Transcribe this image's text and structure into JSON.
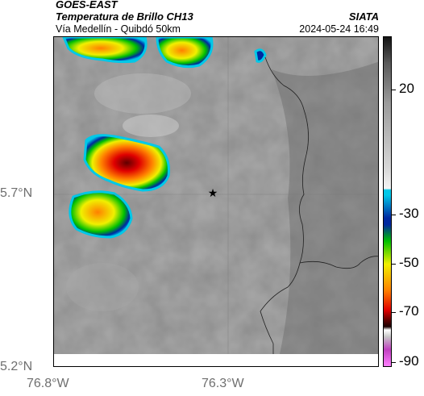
{
  "header": {
    "satellite": "GOES-EAST",
    "product": "Temperatura de Brillo CH13",
    "route": "Vía Medellín - Quibdó 50km",
    "organization": "SIATA",
    "timestamp": "2024-05-24 16:49"
  },
  "axes": {
    "lat_labels": [
      "5.7°N",
      "5.2°N"
    ],
    "lon_labels": [
      "76.8°W",
      "76.3°W"
    ]
  },
  "colorbar": {
    "labels": [
      "20",
      "-30",
      "-50",
      "-70",
      "-90"
    ],
    "colors": {
      "warm_gray": "#8a8a8a",
      "cyan": "#00c8e8",
      "blue": "#0028a0",
      "green": "#00c000",
      "yellow": "#f0f000",
      "orange": "#ff8000",
      "red": "#e00000",
      "dark_red": "#600000",
      "magenta": "#c040c0"
    }
  },
  "map": {
    "marker": "star-icon"
  }
}
